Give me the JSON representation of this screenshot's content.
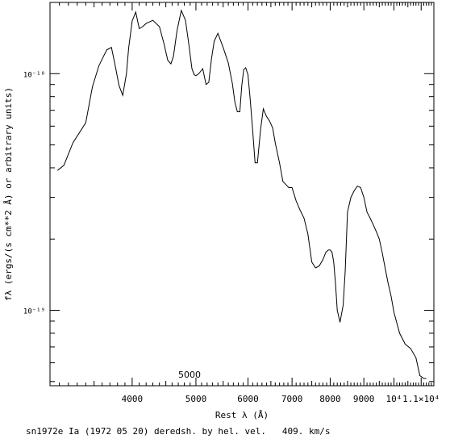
{
  "chart_data": {
    "type": "line",
    "xscale": "log",
    "yscale": "log",
    "xlabel": "Rest λ (Å)",
    "ylabel": "fλ (ergs/(s cm**2 Å) or arbitrary units)",
    "xlim": [
      3000,
      11500
    ],
    "ylim": [
      4.8e-20,
      2e-18
    ],
    "x_tick_labels": [
      "4000",
      "5000",
      "6000",
      "7000",
      "8000",
      "9000",
      "10⁴",
      "1.1×10⁴"
    ],
    "x_ticks": [
      4000,
      5000,
      6000,
      7000,
      8000,
      9000,
      10000,
      11000
    ],
    "y_tick_labels": [
      "10⁻¹⁸",
      "10⁻¹⁹"
    ],
    "y_ticks": [
      1e-18,
      1e-19
    ],
    "grid": false,
    "annotation": "5000",
    "caption": "sn1972e Ia (1972 05 20) deredsh. by hel. vel.   409. km/s",
    "series": [
      {
        "x": [
          3080,
          3150,
          3250,
          3400,
          3480,
          3560,
          3610,
          3660,
          3720,
          3770,
          3820,
          3870,
          3920,
          3950,
          4000,
          4050,
          4100,
          4150,
          4200,
          4300,
          4400,
          4470,
          4530,
          4580,
          4620,
          4680,
          4750,
          4820,
          4880,
          4930,
          4970,
          5000,
          5050,
          5120,
          5180,
          5230,
          5280,
          5330,
          5400,
          5500,
          5600,
          5680,
          5730,
          5780,
          5830,
          5870,
          5910,
          5950,
          6000,
          6050,
          6100,
          6150,
          6200,
          6270,
          6330,
          6400,
          6470,
          6540,
          6600,
          6700,
          6780,
          6850,
          6920,
          7000,
          7100,
          7200,
          7300,
          7400,
          7500,
          7600,
          7700,
          7800,
          7880,
          7950,
          8000,
          8050,
          8100,
          8150,
          8200,
          8280,
          8370,
          8430,
          8500,
          8600,
          8700,
          8800,
          8900,
          9000,
          9100,
          9200,
          9300,
          9400,
          9500,
          9600,
          9700,
          9800,
          9900,
          10000,
          10200,
          10400,
          10600,
          10800,
          10950,
          11100,
          11200
        ],
        "y": [
          3.9e-19,
          4.1e-19,
          5.1e-19,
          6.2e-19,
          8.8e-19,
          1.08e-18,
          1.17e-18,
          1.26e-18,
          1.29e-18,
          1.08e-18,
          8.9e-19,
          8.1e-19,
          1e-18,
          1.28e-18,
          1.67e-18,
          1.82e-18,
          1.55e-18,
          1.58e-18,
          1.63e-18,
          1.68e-18,
          1.58e-18,
          1.34e-18,
          1.14e-18,
          1.1e-18,
          1.18e-18,
          1.52e-18,
          1.85e-18,
          1.68e-18,
          1.32e-18,
          1.05e-18,
          9.9e-19,
          9.8e-19,
          1e-18,
          1.05e-18,
          9e-19,
          9.2e-19,
          1.16e-18,
          1.37e-18,
          1.48e-18,
          1.29e-18,
          1.11e-18,
          9.1e-19,
          7.6e-19,
          6.9e-19,
          6.9e-19,
          8.9e-19,
          1.04e-18,
          1.06e-18,
          9.9e-19,
          7.6e-19,
          5.7e-19,
          4.2e-19,
          4.2e-19,
          5.8e-19,
          7.1e-19,
          6.6e-19,
          6.3e-19,
          5.9e-19,
          5.1e-19,
          4.2e-19,
          3.5e-19,
          3.4e-19,
          3.3e-19,
          3.3e-19,
          2.9e-19,
          2.65e-19,
          2.45e-19,
          2.1e-19,
          1.6e-19,
          1.51e-19,
          1.54e-19,
          1.64e-19,
          1.76e-19,
          1.8e-19,
          1.8e-19,
          1.76e-19,
          1.6e-19,
          1.3e-19,
          1e-19,
          8.9e-20,
          1.05e-19,
          1.45e-19,
          2.6e-19,
          3e-19,
          3.2e-19,
          3.35e-19,
          3.3e-19,
          3e-19,
          2.6e-19,
          2.45e-19,
          2.3e-19,
          2.15e-19,
          2e-19,
          1.75e-19,
          1.5e-19,
          1.3e-19,
          1.15e-19,
          9.8e-20,
          8e-20,
          7.2e-20,
          6.9e-20,
          6.3e-20,
          5.3e-20,
          5.15e-20,
          5.15e-20
        ]
      }
    ]
  }
}
